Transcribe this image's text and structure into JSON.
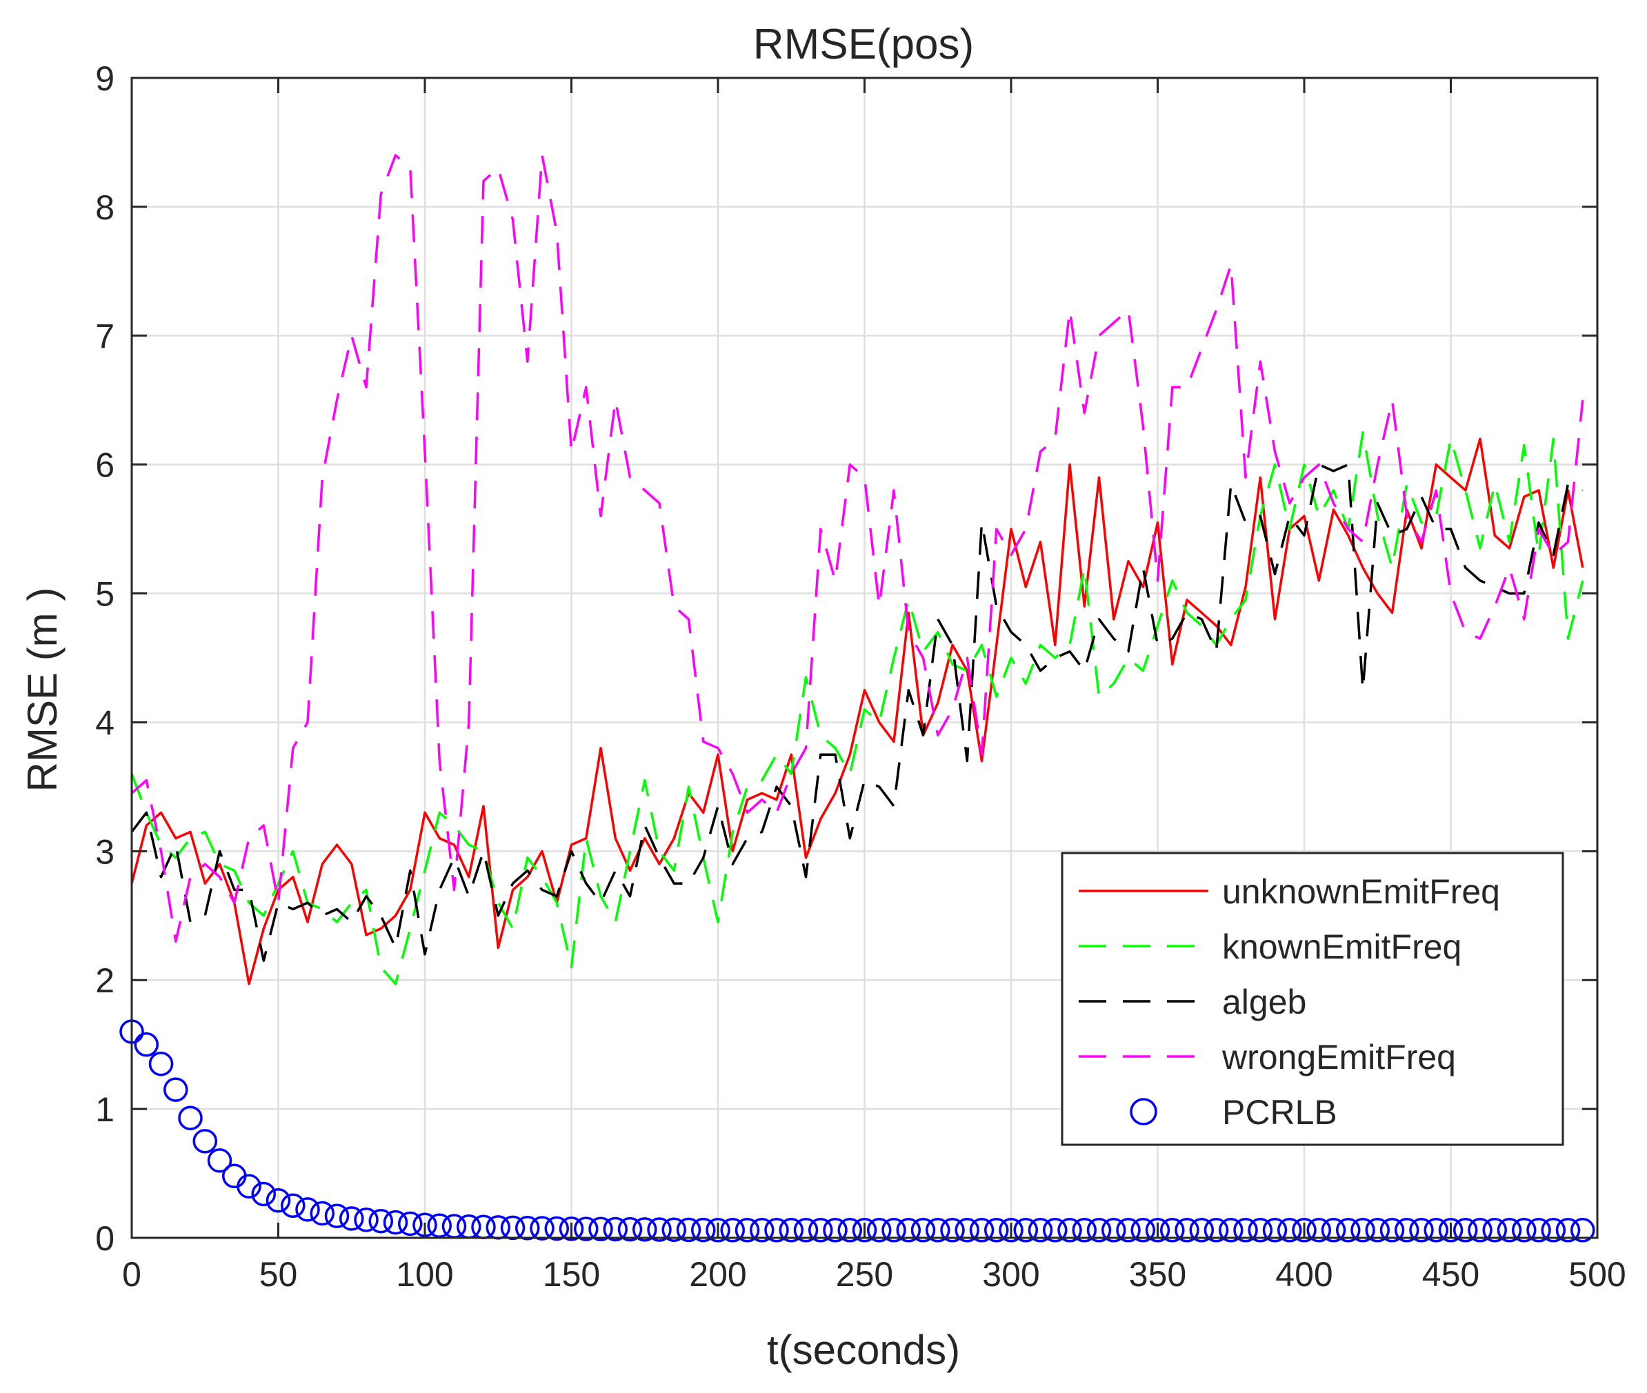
{
  "chart_data": {
    "type": "line",
    "title": "RMSE(pos)",
    "xlabel": "t(seconds)",
    "ylabel": "RMSE (m )",
    "xlim": [
      0,
      500
    ],
    "ylim": [
      0,
      9
    ],
    "xticks": [
      "0",
      "50",
      "100",
      "150",
      "200",
      "250",
      "300",
      "350",
      "400",
      "450",
      "500"
    ],
    "yticks": [
      "0",
      "1",
      "2",
      "3",
      "4",
      "5",
      "6",
      "7",
      "8",
      "9"
    ],
    "grid": true,
    "legend_position": "bottom-right",
    "series": [
      {
        "name": "unknownEmitFreq",
        "color": "#ff0000",
        "style": "solid",
        "x": [
          0,
          5,
          10,
          15,
          20,
          25,
          30,
          35,
          40,
          45,
          50,
          55,
          60,
          65,
          70,
          75,
          80,
          85,
          90,
          95,
          100,
          105,
          110,
          115,
          120,
          125,
          130,
          135,
          140,
          145,
          150,
          155,
          160,
          165,
          170,
          175,
          180,
          185,
          190,
          195,
          200,
          205,
          210,
          215,
          220,
          225,
          230,
          235,
          240,
          245,
          250,
          255,
          260,
          265,
          270,
          275,
          280,
          285,
          290,
          295,
          300,
          305,
          310,
          315,
          320,
          325,
          330,
          335,
          340,
          345,
          350,
          355,
          360,
          365,
          370,
          375,
          380,
          385,
          390,
          395,
          400,
          405,
          410,
          415,
          420,
          425,
          430,
          435,
          440,
          445,
          450,
          455,
          460,
          465,
          470,
          475,
          480,
          485,
          490,
          495
        ],
        "y": [
          2.75,
          3.2,
          3.3,
          3.1,
          3.15,
          2.75,
          2.9,
          2.6,
          1.97,
          2.4,
          2.7,
          2.8,
          2.45,
          2.9,
          3.05,
          2.9,
          2.35,
          2.4,
          2.5,
          2.7,
          3.3,
          3.1,
          3.05,
          2.8,
          3.35,
          2.25,
          2.7,
          2.8,
          3.0,
          2.6,
          3.05,
          3.1,
          3.8,
          3.1,
          2.85,
          3.1,
          2.9,
          3.1,
          3.45,
          3.3,
          3.75,
          3.0,
          3.4,
          3.45,
          3.4,
          3.75,
          2.95,
          3.25,
          3.45,
          3.75,
          4.25,
          4.0,
          3.85,
          4.85,
          3.9,
          4.15,
          4.6,
          4.4,
          3.7,
          4.6,
          5.5,
          5.05,
          5.4,
          4.6,
          6.0,
          4.9,
          5.9,
          4.8,
          5.25,
          5.05,
          5.55,
          4.45,
          4.95,
          4.85,
          4.75,
          4.6,
          5.05,
          5.9,
          4.8,
          5.5,
          5.6,
          5.1,
          5.65,
          5.45,
          5.2,
          5.0,
          4.85,
          5.65,
          5.35,
          6.0,
          5.9,
          5.8,
          6.2,
          5.45,
          5.35,
          5.75,
          5.8,
          5.2,
          5.8,
          5.2
        ]
      },
      {
        "name": "knownEmitFreq",
        "color": "#00ff00",
        "style": "dashed",
        "x": [
          0,
          5,
          10,
          15,
          20,
          25,
          30,
          35,
          40,
          45,
          50,
          55,
          60,
          65,
          70,
          75,
          80,
          85,
          90,
          95,
          100,
          105,
          110,
          115,
          120,
          125,
          130,
          135,
          140,
          145,
          150,
          155,
          160,
          165,
          170,
          175,
          180,
          185,
          190,
          195,
          200,
          205,
          210,
          215,
          220,
          225,
          230,
          235,
          240,
          245,
          250,
          255,
          260,
          265,
          270,
          275,
          280,
          285,
          290,
          295,
          300,
          305,
          310,
          315,
          320,
          325,
          330,
          335,
          340,
          345,
          350,
          355,
          360,
          365,
          370,
          375,
          380,
          385,
          390,
          395,
          400,
          405,
          410,
          415,
          420,
          425,
          430,
          435,
          440,
          445,
          450,
          455,
          460,
          465,
          470,
          475,
          480,
          485,
          490,
          495
        ],
        "y": [
          3.6,
          3.3,
          3.05,
          2.95,
          3.1,
          3.15,
          2.9,
          2.85,
          2.6,
          2.5,
          2.75,
          3.0,
          2.6,
          2.55,
          2.45,
          2.6,
          2.7,
          2.1,
          1.97,
          2.4,
          2.85,
          3.3,
          3.2,
          3.05,
          3.0,
          2.6,
          2.4,
          2.95,
          2.8,
          2.6,
          2.1,
          3.1,
          2.65,
          2.45,
          3.0,
          3.55,
          3.0,
          2.85,
          3.5,
          2.95,
          2.45,
          3.15,
          3.5,
          3.55,
          3.75,
          3.6,
          4.35,
          3.9,
          3.8,
          3.6,
          4.1,
          4.0,
          4.5,
          4.95,
          4.55,
          4.7,
          4.45,
          4.4,
          4.6,
          4.2,
          4.5,
          4.3,
          4.6,
          4.5,
          4.6,
          5.2,
          4.2,
          4.3,
          4.5,
          4.4,
          4.75,
          5.1,
          4.85,
          4.75,
          4.6,
          4.8,
          4.95,
          5.6,
          6.0,
          5.5,
          6.0,
          5.6,
          5.8,
          5.5,
          6.25,
          5.6,
          5.2,
          5.85,
          5.55,
          5.6,
          6.2,
          5.8,
          5.35,
          5.85,
          5.4,
          6.15,
          5.3,
          6.2,
          4.65,
          5.1
        ]
      },
      {
        "name": "algeb",
        "color": "#000000",
        "style": "dashed",
        "x": [
          0,
          5,
          10,
          15,
          20,
          25,
          30,
          35,
          40,
          45,
          50,
          55,
          60,
          65,
          70,
          75,
          80,
          85,
          90,
          95,
          100,
          105,
          110,
          115,
          120,
          125,
          130,
          135,
          140,
          145,
          150,
          155,
          160,
          165,
          170,
          175,
          180,
          185,
          190,
          195,
          200,
          205,
          210,
          215,
          220,
          225,
          230,
          235,
          240,
          245,
          250,
          255,
          260,
          265,
          270,
          275,
          280,
          285,
          290,
          295,
          300,
          305,
          310,
          315,
          320,
          325,
          330,
          335,
          340,
          345,
          350,
          355,
          360,
          365,
          370,
          375,
          380,
          385,
          390,
          395,
          400,
          405,
          410,
          415,
          420,
          425,
          430,
          435,
          440,
          445,
          450,
          455,
          460,
          465,
          470,
          475,
          480,
          485,
          490,
          495
        ],
        "y": [
          3.15,
          3.3,
          2.8,
          3.05,
          2.45,
          2.5,
          3.0,
          2.7,
          2.7,
          2.15,
          2.6,
          2.55,
          2.6,
          2.5,
          2.55,
          2.45,
          2.65,
          2.5,
          2.25,
          2.85,
          2.2,
          2.7,
          2.95,
          2.65,
          3.0,
          2.5,
          2.75,
          2.85,
          2.7,
          2.65,
          3.0,
          2.75,
          2.6,
          2.85,
          2.65,
          3.2,
          2.95,
          2.75,
          2.75,
          2.95,
          3.35,
          2.9,
          3.1,
          3.15,
          3.5,
          3.35,
          2.8,
          3.75,
          3.75,
          3.1,
          3.55,
          3.5,
          3.35,
          4.25,
          3.9,
          4.8,
          4.6,
          3.7,
          5.55,
          4.9,
          4.7,
          4.6,
          4.4,
          4.5,
          4.55,
          4.4,
          4.8,
          4.65,
          4.55,
          5.2,
          4.6,
          4.65,
          4.85,
          4.8,
          4.55,
          5.85,
          5.55,
          5.6,
          5.15,
          5.6,
          5.45,
          6.0,
          5.95,
          6.0,
          4.25,
          5.7,
          5.45,
          5.5,
          5.75,
          5.5,
          5.5,
          5.2,
          5.1,
          5.05,
          5.0,
          5.0,
          5.55,
          5.3,
          5.85,
          5.8
        ]
      },
      {
        "name": "wrongEmitFreq",
        "color": "#ff00ff",
        "style": "dashed",
        "x": [
          0,
          5,
          10,
          15,
          20,
          25,
          30,
          35,
          40,
          45,
          50,
          55,
          60,
          65,
          70,
          75,
          80,
          85,
          90,
          95,
          100,
          105,
          110,
          115,
          120,
          125,
          130,
          135,
          140,
          145,
          150,
          155,
          160,
          165,
          170,
          175,
          180,
          185,
          190,
          195,
          200,
          205,
          210,
          215,
          220,
          225,
          230,
          235,
          240,
          245,
          250,
          255,
          260,
          265,
          270,
          275,
          280,
          285,
          290,
          295,
          300,
          305,
          310,
          315,
          320,
          325,
          330,
          335,
          340,
          345,
          350,
          355,
          360,
          365,
          370,
          375,
          380,
          385,
          390,
          395,
          400,
          405,
          410,
          415,
          420,
          425,
          430,
          435,
          440,
          445,
          450,
          455,
          460,
          465,
          470,
          475,
          480,
          485,
          490,
          495
        ],
        "y": [
          3.45,
          3.55,
          3.0,
          2.3,
          2.8,
          2.9,
          2.8,
          2.6,
          3.1,
          3.2,
          2.6,
          3.8,
          4.0,
          5.9,
          6.5,
          7.0,
          6.6,
          8.1,
          8.4,
          8.3,
          6.1,
          3.7,
          2.7,
          4.0,
          8.2,
          8.3,
          7.9,
          6.8,
          8.4,
          7.8,
          6.1,
          6.6,
          5.6,
          6.5,
          5.9,
          5.8,
          5.7,
          4.9,
          4.8,
          3.85,
          3.8,
          3.6,
          3.3,
          3.4,
          3.3,
          3.6,
          3.8,
          5.5,
          5.1,
          6.0,
          5.9,
          4.9,
          5.8,
          4.7,
          4.5,
          3.9,
          4.1,
          4.5,
          3.75,
          5.5,
          5.3,
          5.5,
          6.1,
          6.2,
          7.2,
          6.4,
          7.0,
          7.1,
          7.2,
          6.3,
          5.1,
          6.6,
          6.6,
          6.9,
          7.2,
          7.55,
          5.9,
          6.8,
          6.1,
          5.7,
          5.9,
          6.0,
          5.7,
          5.5,
          5.4,
          6.0,
          6.5,
          5.6,
          5.4,
          5.8,
          5.0,
          4.7,
          4.65,
          4.9,
          5.2,
          4.8,
          5.5,
          5.3,
          5.4,
          6.5
        ]
      },
      {
        "name": "PCRLB",
        "color": "#0000ff",
        "style": "circle",
        "x": [
          0,
          5,
          10,
          15,
          20,
          25,
          30,
          35,
          40,
          45,
          50,
          55,
          60,
          65,
          70,
          75,
          80,
          85,
          90,
          95,
          100,
          105,
          110,
          115,
          120,
          125,
          130,
          135,
          140,
          145,
          150,
          155,
          160,
          165,
          170,
          175,
          180,
          185,
          190,
          195,
          200,
          205,
          210,
          215,
          220,
          225,
          230,
          235,
          240,
          245,
          250,
          255,
          260,
          265,
          270,
          275,
          280,
          285,
          290,
          295,
          300,
          305,
          310,
          315,
          320,
          325,
          330,
          335,
          340,
          345,
          350,
          355,
          360,
          365,
          370,
          375,
          380,
          385,
          390,
          395,
          400,
          405,
          410,
          415,
          420,
          425,
          430,
          435,
          440,
          445,
          450,
          455,
          460,
          465,
          470,
          475,
          480,
          485,
          490,
          495
        ],
        "y": [
          1.6,
          1.5,
          1.35,
          1.15,
          0.93,
          0.75,
          0.6,
          0.48,
          0.4,
          0.34,
          0.29,
          0.25,
          0.22,
          0.19,
          0.17,
          0.15,
          0.14,
          0.13,
          0.12,
          0.11,
          0.1,
          0.095,
          0.09,
          0.087,
          0.084,
          0.081,
          0.078,
          0.076,
          0.074,
          0.072,
          0.07,
          0.069,
          0.068,
          0.067,
          0.066,
          0.065,
          0.064,
          0.063,
          0.062,
          0.061,
          0.06,
          0.06,
          0.06,
          0.06,
          0.06,
          0.06,
          0.06,
          0.06,
          0.06,
          0.06,
          0.06,
          0.06,
          0.06,
          0.06,
          0.06,
          0.06,
          0.06,
          0.06,
          0.06,
          0.06,
          0.06,
          0.06,
          0.06,
          0.06,
          0.06,
          0.06,
          0.06,
          0.06,
          0.06,
          0.06,
          0.06,
          0.06,
          0.06,
          0.06,
          0.06,
          0.06,
          0.06,
          0.06,
          0.06,
          0.06,
          0.06,
          0.06,
          0.06,
          0.06,
          0.06,
          0.06,
          0.06,
          0.06,
          0.06,
          0.06,
          0.06,
          0.06,
          0.06,
          0.06,
          0.06,
          0.06,
          0.06,
          0.06,
          0.06,
          0.06
        ]
      }
    ]
  }
}
